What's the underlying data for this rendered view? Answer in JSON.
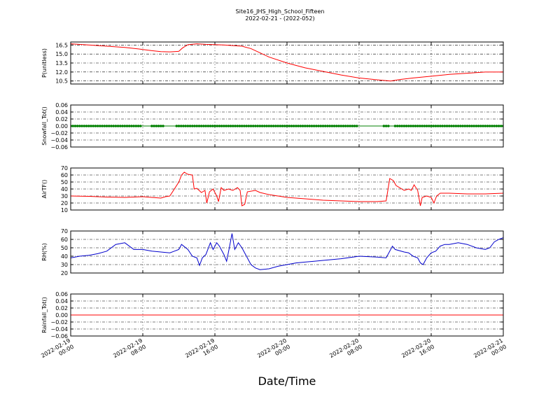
{
  "chart_data": {
    "type": "line",
    "title": "Site16_JHS_High_School_Fifteen",
    "subtitle": "2022-02-21 - (2022-052)",
    "xlabel": "Date/Time",
    "x_ticks": [
      {
        "line1": "2022-02-19",
        "line2": "00:00",
        "hours": 0
      },
      {
        "line1": "2022-02-19",
        "line2": "08:00",
        "hours": 8
      },
      {
        "line1": "2022-02-19",
        "line2": "16:00",
        "hours": 16
      },
      {
        "line1": "2022-02-20",
        "line2": "00:00",
        "hours": 24
      },
      {
        "line1": "2022-02-20",
        "line2": "08:00",
        "hours": 32
      },
      {
        "line1": "2022-02-20",
        "line2": "16:00",
        "hours": 40
      },
      {
        "line1": "2022-02-21",
        "line2": "00:00",
        "hours": 48
      }
    ],
    "grid": true,
    "panels": [
      {
        "ylabel": "P(unitless)",
        "ylim": [
          10.0,
          17.0
        ],
        "yticks": [
          "10.5",
          "12.0",
          "13.5",
          "15.0",
          "16.5"
        ],
        "ytick_values": [
          10.5,
          12.0,
          13.5,
          15.0,
          16.5
        ],
        "series": [
          {
            "color": "#ff0000",
            "points": [
              [
                0,
                16.7
              ],
              [
                2,
                16.5
              ],
              [
                4,
                16.3
              ],
              [
                6,
                16.1
              ],
              [
                7.5,
                15.85
              ],
              [
                9,
                15.55
              ],
              [
                10,
                15.4
              ],
              [
                11,
                15.35
              ],
              [
                12,
                15.45
              ],
              [
                12.4,
                16.0
              ],
              [
                13,
                16.55
              ],
              [
                14,
                16.7
              ],
              [
                15,
                16.6
              ],
              [
                17,
                16.5
              ],
              [
                19,
                16.3
              ],
              [
                20,
                15.9
              ],
              [
                21,
                15.2
              ],
              [
                22,
                14.5
              ],
              [
                24,
                13.5
              ],
              [
                26,
                12.7
              ],
              [
                28,
                12.1
              ],
              [
                30,
                11.5
              ],
              [
                32,
                11.0
              ],
              [
                34,
                10.7
              ],
              [
                35.5,
                10.5
              ],
              [
                36.5,
                10.75
              ],
              [
                38,
                11.0
              ],
              [
                40,
                11.3
              ],
              [
                42,
                11.6
              ],
              [
                44,
                11.8
              ],
              [
                46,
                12.0
              ],
              [
                48,
                12.0
              ]
            ]
          }
        ]
      },
      {
        "ylabel": "Snowfall_Tot()",
        "ylim": [
          -0.06,
          0.06
        ],
        "yticks": [
          "−0.06",
          "−0.04",
          "−0.02",
          "0.00",
          "0.02",
          "0.04",
          "0.06"
        ],
        "ytick_values": [
          -0.06,
          -0.04,
          -0.02,
          0.0,
          0.02,
          0.04,
          0.06
        ],
        "series": [
          {
            "color": "#008000",
            "marker": "dot",
            "step_hours": 0.25,
            "gaps": [
              [
                7.9,
                8.9
              ],
              [
                10.5,
                11.5
              ],
              [
                32.0,
                34.7
              ],
              [
                35.3,
                35.8
              ]
            ],
            "points": [
              [
                0,
                0.0
              ],
              [
                48,
                0.0
              ]
            ]
          }
        ]
      },
      {
        "ylabel": "AirTF()",
        "ylim": [
          10,
          70
        ],
        "yticks": [
          "10",
          "20",
          "30",
          "40",
          "50",
          "60",
          "70"
        ],
        "ytick_values": [
          10,
          20,
          30,
          40,
          50,
          60,
          70
        ],
        "series": [
          {
            "color": "#ff0000",
            "points": [
              [
                0,
                30
              ],
              [
                2,
                29.5
              ],
              [
                4,
                28.5
              ],
              [
                6,
                28
              ],
              [
                8,
                29
              ],
              [
                9,
                28
              ],
              [
                10,
                27
              ],
              [
                10.5,
                29
              ],
              [
                11,
                30
              ],
              [
                12,
                50
              ],
              [
                12.3,
                60
              ],
              [
                12.6,
                64
              ],
              [
                13,
                61
              ],
              [
                13.5,
                60
              ],
              [
                13.7,
                40
              ],
              [
                14,
                41
              ],
              [
                14.5,
                35
              ],
              [
                14.9,
                38
              ],
              [
                15.1,
                20
              ],
              [
                15.4,
                36
              ],
              [
                15.8,
                40
              ],
              [
                16.2,
                30
              ],
              [
                16.4,
                22
              ],
              [
                16.7,
                42
              ],
              [
                17,
                38
              ],
              [
                17.5,
                40
              ],
              [
                18,
                38
              ],
              [
                18.5,
                42
              ],
              [
                18.8,
                38
              ],
              [
                19,
                16
              ],
              [
                19.3,
                18
              ],
              [
                19.6,
                36
              ],
              [
                20.5,
                38
              ],
              [
                21,
                35
              ],
              [
                22,
                32
              ],
              [
                24,
                28
              ],
              [
                26,
                26
              ],
              [
                28,
                24
              ],
              [
                30,
                23
              ],
              [
                32,
                22
              ],
              [
                34,
                22
              ],
              [
                35,
                23
              ],
              [
                35.4,
                55
              ],
              [
                35.8,
                52
              ],
              [
                36.1,
                45
              ],
              [
                37,
                38
              ],
              [
                37.5,
                40
              ],
              [
                37.8,
                38
              ],
              [
                38.1,
                46
              ],
              [
                38.5,
                38
              ],
              [
                38.8,
                16
              ],
              [
                39,
                28
              ],
              [
                39.5,
                30
              ],
              [
                40,
                28
              ],
              [
                40.3,
                20
              ],
              [
                40.6,
                30
              ],
              [
                41,
                34
              ],
              [
                42,
                34
              ],
              [
                44,
                33
              ],
              [
                46,
                33
              ],
              [
                48,
                34
              ]
            ]
          }
        ]
      },
      {
        "ylabel": "RH(%)",
        "ylim": [
          20,
          70
        ],
        "yticks": [
          "20",
          "30",
          "40",
          "50",
          "60",
          "70"
        ],
        "ytick_values": [
          20,
          30,
          40,
          50,
          60,
          70
        ],
        "series": [
          {
            "color": "#0000cc",
            "points": [
              [
                0,
                38
              ],
              [
                1,
                40
              ],
              [
                2,
                41
              ],
              [
                3,
                43
              ],
              [
                4,
                46
              ],
              [
                5,
                54
              ],
              [
                6,
                56
              ],
              [
                7,
                48
              ],
              [
                8,
                48
              ],
              [
                9,
                46
              ],
              [
                10,
                45
              ],
              [
                11,
                44
              ],
              [
                11.5,
                46
              ],
              [
                12,
                48
              ],
              [
                12.3,
                54
              ],
              [
                13,
                48
              ],
              [
                13.5,
                40
              ],
              [
                14,
                38
              ],
              [
                14.3,
                29
              ],
              [
                14.6,
                38
              ],
              [
                15,
                42
              ],
              [
                15.5,
                56
              ],
              [
                15.8,
                48
              ],
              [
                16.2,
                56
              ],
              [
                16.5,
                52
              ],
              [
                17,
                42
              ],
              [
                17.3,
                34
              ],
              [
                17.6,
                50
              ],
              [
                17.9,
                67
              ],
              [
                18.2,
                48
              ],
              [
                18.6,
                56
              ],
              [
                19,
                50
              ],
              [
                19.5,
                40
              ],
              [
                20,
                30
              ],
              [
                20.5,
                26
              ],
              [
                21,
                24
              ],
              [
                22,
                25
              ],
              [
                23,
                28
              ],
              [
                24,
                30
              ],
              [
                25,
                32
              ],
              [
                26,
                33
              ],
              [
                27,
                34
              ],
              [
                28,
                35
              ],
              [
                30,
                37
              ],
              [
                32,
                40
              ],
              [
                34,
                39
              ],
              [
                35,
                38
              ],
              [
                35.7,
                52
              ],
              [
                36,
                48
              ],
              [
                37,
                45
              ],
              [
                37.5,
                44
              ],
              [
                38,
                40
              ],
              [
                38.5,
                38
              ],
              [
                38.8,
                32
              ],
              [
                39.1,
                30
              ],
              [
                39.5,
                38
              ],
              [
                40,
                44
              ],
              [
                40.5,
                46
              ],
              [
                41,
                52
              ],
              [
                41.5,
                54
              ],
              [
                42,
                54
              ],
              [
                43,
                56
              ],
              [
                44,
                54
              ],
              [
                45,
                50
              ],
              [
                46,
                48
              ],
              [
                46.5,
                50
              ],
              [
                47,
                57
              ],
              [
                47.5,
                60
              ],
              [
                48,
                62
              ]
            ]
          }
        ]
      },
      {
        "ylabel": "Rainfall_Tot()",
        "ylim": [
          -0.06,
          0.06
        ],
        "yticks": [
          "−0.06",
          "−0.04",
          "−0.02",
          "0.00",
          "0.02",
          "0.04",
          "0.06"
        ],
        "ytick_values": [
          -0.06,
          -0.04,
          -0.02,
          0.0,
          0.02,
          0.04,
          0.06
        ],
        "series": [
          {
            "color": "#ff0000",
            "points": [
              [
                0,
                0.0
              ],
              [
                48,
                0.0
              ]
            ]
          }
        ]
      }
    ]
  }
}
